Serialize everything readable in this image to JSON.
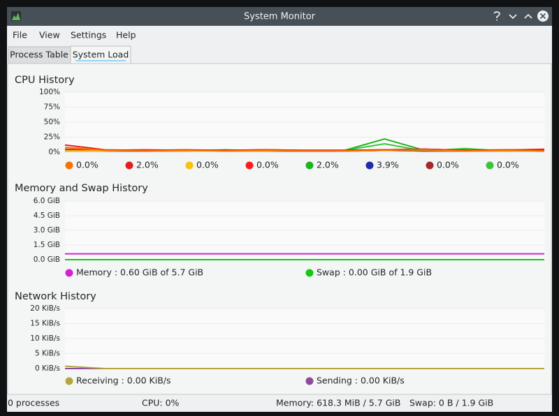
{
  "window": {
    "title": "System Monitor"
  },
  "menu": [
    "File",
    "View",
    "Settings",
    "Help"
  ],
  "tabs": [
    "Process Table",
    "System Load"
  ],
  "chart_data": [
    {
      "type": "line",
      "title": "CPU History",
      "ylim": [
        0,
        100
      ],
      "yticks": [
        {
          "value": 0,
          "label": "0%"
        },
        {
          "value": 25,
          "label": "25%"
        },
        {
          "value": 50,
          "label": "50%"
        },
        {
          "value": 75,
          "label": "75%"
        },
        {
          "value": 100,
          "label": "100%"
        }
      ],
      "grid": true,
      "series": [
        {
          "name": "0.0%",
          "color": "#f67400",
          "values": [
            8,
            3,
            2,
            3,
            2,
            3,
            2,
            2,
            3,
            4,
            2,
            3,
            2
          ]
        },
        {
          "name": "2.0%",
          "color": "#e02020",
          "values": [
            12,
            4,
            3,
            4,
            3,
            4,
            3,
            3,
            4,
            5,
            3,
            4,
            4
          ]
        },
        {
          "name": "0.0%",
          "color": "#f5c211",
          "values": [
            2,
            2,
            3,
            2,
            2,
            2,
            3,
            2,
            3,
            3,
            2,
            2,
            3
          ]
        },
        {
          "name": "0.0%",
          "color": "#ff1a1a",
          "values": [
            5,
            3,
            4,
            3,
            3,
            4,
            3,
            3,
            4,
            5,
            3,
            3,
            5
          ]
        },
        {
          "name": "2.0%",
          "color": "#1cb51c",
          "values": [
            3,
            2,
            3,
            2,
            4,
            2,
            3,
            3,
            22,
            3,
            4,
            3,
            2
          ]
        },
        {
          "name": "3.9%",
          "color": "#1d2ea8",
          "values": [
            2,
            2,
            2,
            3,
            2,
            2,
            2,
            2,
            3,
            2,
            2,
            2,
            3
          ]
        },
        {
          "name": "0.0%",
          "color": "#a52a2a",
          "values": [
            3,
            2,
            2,
            2,
            3,
            2,
            2,
            2,
            3,
            2,
            2,
            3,
            2
          ]
        },
        {
          "name": "0.0%",
          "color": "#3cc43c",
          "values": [
            2,
            3,
            2,
            3,
            2,
            3,
            2,
            3,
            14,
            2,
            6,
            2,
            2
          ]
        }
      ]
    },
    {
      "type": "line",
      "title": "Memory and Swap History",
      "ylim": [
        0,
        6
      ],
      "yticks": [
        {
          "value": 0,
          "label": "0.0 GiB"
        },
        {
          "value": 1.5,
          "label": "1.5 GiB"
        },
        {
          "value": 3,
          "label": "3.0 GiB"
        },
        {
          "value": 4.5,
          "label": "4.5 GiB"
        },
        {
          "value": 6,
          "label": "6.0 GiB"
        }
      ],
      "grid": true,
      "series": [
        {
          "name": "Memory : 0.60 GiB of 5.7 GiB",
          "color": "#d024d0",
          "values": [
            0.6,
            0.6,
            0.6,
            0.6,
            0.6,
            0.6,
            0.6,
            0.6,
            0.6,
            0.6,
            0.6,
            0.6,
            0.6
          ]
        },
        {
          "name": "Swap : 0.00 GiB of 1.9 GiB",
          "color": "#14c814",
          "values": [
            0,
            0,
            0,
            0,
            0,
            0,
            0,
            0,
            0,
            0,
            0,
            0,
            0
          ]
        }
      ]
    },
    {
      "type": "line",
      "title": "Network History",
      "ylim": [
        0,
        20
      ],
      "yticks": [
        {
          "value": 0,
          "label": "0 KiB/s"
        },
        {
          "value": 5,
          "label": "5 KiB/s"
        },
        {
          "value": 10,
          "label": "10 KiB/s"
        },
        {
          "value": 15,
          "label": "15 KiB/s"
        },
        {
          "value": 20,
          "label": "20 KiB/s"
        }
      ],
      "grid": true,
      "series": [
        {
          "name": "Receiving : 0.00 KiB/s",
          "color": "#b5a642",
          "values": [
            0.8,
            0,
            0,
            0,
            0,
            0,
            0,
            0,
            0,
            0,
            0,
            0,
            0
          ]
        },
        {
          "name": "Sending : 0.00 KiB/s",
          "color": "#8e4b9c",
          "values": [
            0,
            0,
            0,
            0,
            0,
            0,
            0,
            0,
            0,
            0,
            0,
            0,
            0
          ]
        }
      ]
    }
  ],
  "status_bar": [
    "0 processes",
    "CPU: 0%",
    "Memory: 618.3 MiB / 5.7 GiB",
    "Swap: 0 B / 1.9 GiB"
  ]
}
